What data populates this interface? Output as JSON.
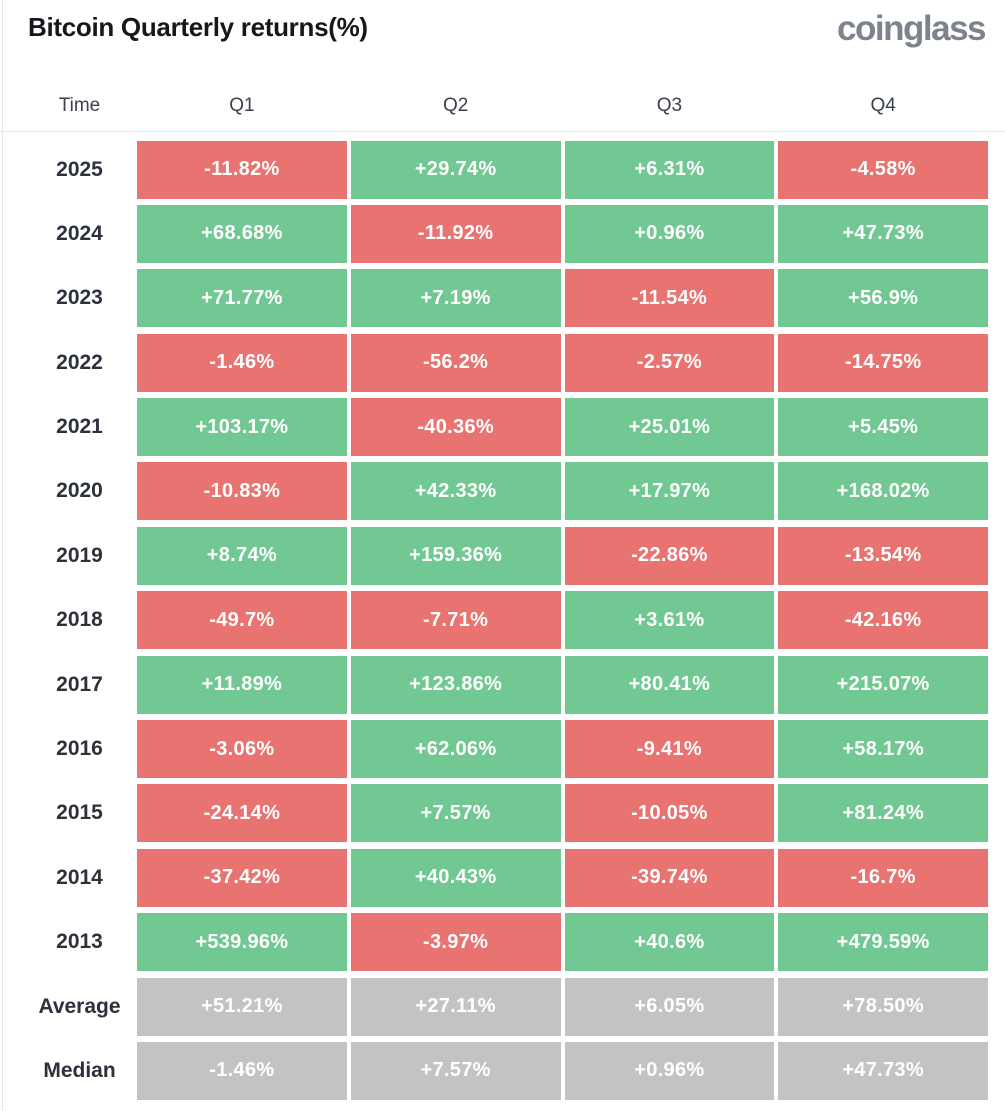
{
  "header": {
    "title": "Bitcoin Quarterly returns(%)",
    "logo": "coinglass"
  },
  "colors": {
    "positive": "#72c893",
    "negative": "#e87371",
    "neutral": "#c4c3c2",
    "header_text": "#3b414c",
    "label_text": "#2c313c",
    "title_text": "#15171c",
    "logo_text": "#7d838c",
    "grid_line": "#e8e8e8"
  },
  "table": {
    "columns": [
      "Time",
      "Q1",
      "Q2",
      "Q3",
      "Q4"
    ],
    "rows": [
      {
        "label": "2025",
        "cells": [
          "-11.82%",
          "+29.74%",
          "+6.31%",
          "-4.58%"
        ],
        "neutral": false
      },
      {
        "label": "2024",
        "cells": [
          "+68.68%",
          "-11.92%",
          "+0.96%",
          "+47.73%"
        ],
        "neutral": false
      },
      {
        "label": "2023",
        "cells": [
          "+71.77%",
          "+7.19%",
          "-11.54%",
          "+56.9%"
        ],
        "neutral": false
      },
      {
        "label": "2022",
        "cells": [
          "-1.46%",
          "-56.2%",
          "-2.57%",
          "-14.75%"
        ],
        "neutral": false
      },
      {
        "label": "2021",
        "cells": [
          "+103.17%",
          "-40.36%",
          "+25.01%",
          "+5.45%"
        ],
        "neutral": false
      },
      {
        "label": "2020",
        "cells": [
          "-10.83%",
          "+42.33%",
          "+17.97%",
          "+168.02%"
        ],
        "neutral": false
      },
      {
        "label": "2019",
        "cells": [
          "+8.74%",
          "+159.36%",
          "-22.86%",
          "-13.54%"
        ],
        "neutral": false
      },
      {
        "label": "2018",
        "cells": [
          "-49.7%",
          "-7.71%",
          "+3.61%",
          "-42.16%"
        ],
        "neutral": false
      },
      {
        "label": "2017",
        "cells": [
          "+11.89%",
          "+123.86%",
          "+80.41%",
          "+215.07%"
        ],
        "neutral": false
      },
      {
        "label": "2016",
        "cells": [
          "-3.06%",
          "+62.06%",
          "-9.41%",
          "+58.17%"
        ],
        "neutral": false
      },
      {
        "label": "2015",
        "cells": [
          "-24.14%",
          "+7.57%",
          "-10.05%",
          "+81.24%"
        ],
        "neutral": false
      },
      {
        "label": "2014",
        "cells": [
          "-37.42%",
          "+40.43%",
          "-39.74%",
          "-16.7%"
        ],
        "neutral": false
      },
      {
        "label": "2013",
        "cells": [
          "+539.96%",
          "-3.97%",
          "+40.6%",
          "+479.59%"
        ],
        "neutral": false
      },
      {
        "label": "Average",
        "cells": [
          "+51.21%",
          "+27.11%",
          "+6.05%",
          "+78.50%"
        ],
        "neutral": true
      },
      {
        "label": "Median",
        "cells": [
          "-1.46%",
          "+7.57%",
          "+0.96%",
          "+47.73%"
        ],
        "neutral": true
      }
    ]
  },
  "chart_data": {
    "type": "heatmap",
    "title": "Bitcoin Quarterly returns(%)",
    "unit": "%",
    "columns": [
      "Q1",
      "Q2",
      "Q3",
      "Q4"
    ],
    "rows": [
      "2025",
      "2024",
      "2023",
      "2022",
      "2021",
      "2020",
      "2019",
      "2018",
      "2017",
      "2016",
      "2015",
      "2014",
      "2013",
      "Average",
      "Median"
    ],
    "values": [
      [
        -11.82,
        29.74,
        6.31,
        -4.58
      ],
      [
        68.68,
        -11.92,
        0.96,
        47.73
      ],
      [
        71.77,
        7.19,
        -11.54,
        56.9
      ],
      [
        -1.46,
        -56.2,
        -2.57,
        -14.75
      ],
      [
        103.17,
        -40.36,
        25.01,
        5.45
      ],
      [
        -10.83,
        42.33,
        17.97,
        168.02
      ],
      [
        8.74,
        159.36,
        -22.86,
        -13.54
      ],
      [
        -49.7,
        -7.71,
        3.61,
        -42.16
      ],
      [
        11.89,
        123.86,
        80.41,
        215.07
      ],
      [
        -3.06,
        62.06,
        -9.41,
        58.17
      ],
      [
        -24.14,
        7.57,
        -10.05,
        81.24
      ],
      [
        -37.42,
        40.43,
        -39.74,
        -16.7
      ],
      [
        539.96,
        -3.97,
        40.6,
        479.59
      ],
      [
        51.21,
        27.11,
        6.05,
        78.5
      ],
      [
        -1.46,
        7.57,
        0.96,
        47.73
      ]
    ],
    "color_rule": "positive=green, negative=red, summary rows (Average/Median)=gray",
    "legend": "none",
    "grid": "off"
  }
}
